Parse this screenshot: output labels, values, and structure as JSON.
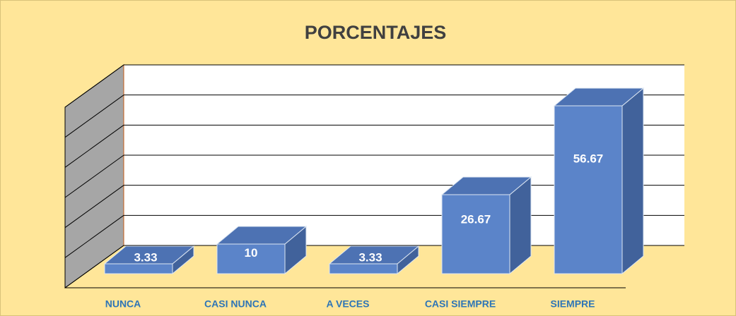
{
  "chart_data": {
    "type": "bar3d",
    "title": "PORCENTAJES",
    "categories": [
      "NUNCA",
      "CASI NUNCA",
      "A VECES",
      "CASI SIEMPRE",
      "SIEMPRE"
    ],
    "values": [
      3.33,
      10,
      3.33,
      26.67,
      56.67
    ],
    "color": "#5b84c9",
    "ylim": [
      0,
      60
    ],
    "yticks": [
      0,
      10,
      20,
      30,
      40,
      50,
      60
    ],
    "grid": true
  }
}
